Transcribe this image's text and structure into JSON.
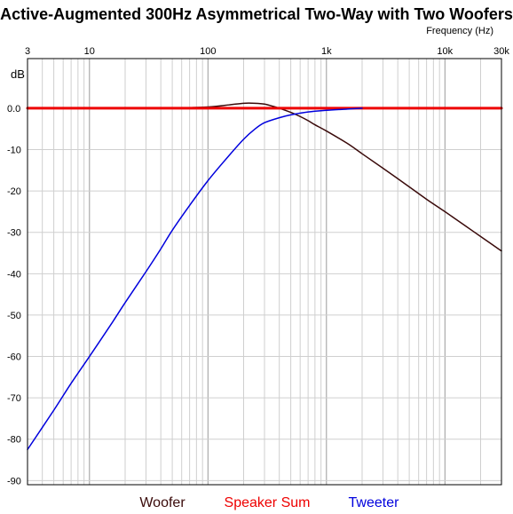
{
  "chart_data": {
    "type": "line",
    "title": "Active-Augmented 300Hz Asymmetrical Two-Way with Two Woofers",
    "xlabel": "Frequency   (Hz)",
    "ylabel": "dB",
    "x_scale": "log",
    "xlim": [
      3,
      30000
    ],
    "ylim": [
      -91,
      12
    ],
    "grid": true,
    "x_tick_values": [
      3,
      10,
      100,
      1000,
      10000,
      30000
    ],
    "x_tick_labels": [
      "3",
      "10",
      "100",
      "1k",
      "10k",
      "30k"
    ],
    "y_tick_values": [
      0,
      -10,
      -20,
      -30,
      -40,
      -50,
      -60,
      -70,
      -80,
      -90
    ],
    "y_tick_labels": [
      "0.0",
      "-10",
      "-20",
      "-30",
      "-40",
      "-50",
      "-60",
      "-70",
      "-80",
      "-90"
    ],
    "legend_placement": "bottom",
    "series": [
      {
        "name": "Woofer",
        "color": "#3a0a0a",
        "points": [
          [
            50,
            0
          ],
          [
            100,
            0.3
          ],
          [
            150,
            0.8
          ],
          [
            200,
            1.2
          ],
          [
            250,
            1.2
          ],
          [
            300,
            1.0
          ],
          [
            350,
            0.5
          ],
          [
            400,
            0
          ],
          [
            500,
            -1
          ],
          [
            600,
            -2
          ],
          [
            700,
            -3
          ],
          [
            800,
            -4
          ],
          [
            1000,
            -5.5
          ],
          [
            1500,
            -8.5
          ],
          [
            2000,
            -11
          ],
          [
            3000,
            -14.5
          ],
          [
            5000,
            -19
          ],
          [
            7000,
            -22
          ],
          [
            10000,
            -25
          ],
          [
            15000,
            -28.5
          ],
          [
            20000,
            -31
          ],
          [
            30000,
            -34.5
          ]
        ]
      },
      {
        "name": "Speaker Sum",
        "color": "#ee0000",
        "points": [
          [
            3,
            0
          ],
          [
            30000,
            0
          ]
        ]
      },
      {
        "name": "Tweeter",
        "color": "#0000dd",
        "points": [
          [
            3,
            -82.5
          ],
          [
            5,
            -73
          ],
          [
            7,
            -66.5
          ],
          [
            10,
            -60
          ],
          [
            15,
            -52.5
          ],
          [
            20,
            -47
          ],
          [
            30,
            -39.5
          ],
          [
            40,
            -34
          ],
          [
            50,
            -29.5
          ],
          [
            70,
            -23.5
          ],
          [
            100,
            -17.5
          ],
          [
            150,
            -11.5
          ],
          [
            200,
            -7.5
          ],
          [
            250,
            -5
          ],
          [
            300,
            -3.5
          ],
          [
            400,
            -2.3
          ],
          [
            500,
            -1.6
          ],
          [
            700,
            -0.9
          ],
          [
            1000,
            -0.5
          ],
          [
            1500,
            -0.2
          ],
          [
            2000,
            0
          ]
        ]
      }
    ]
  }
}
